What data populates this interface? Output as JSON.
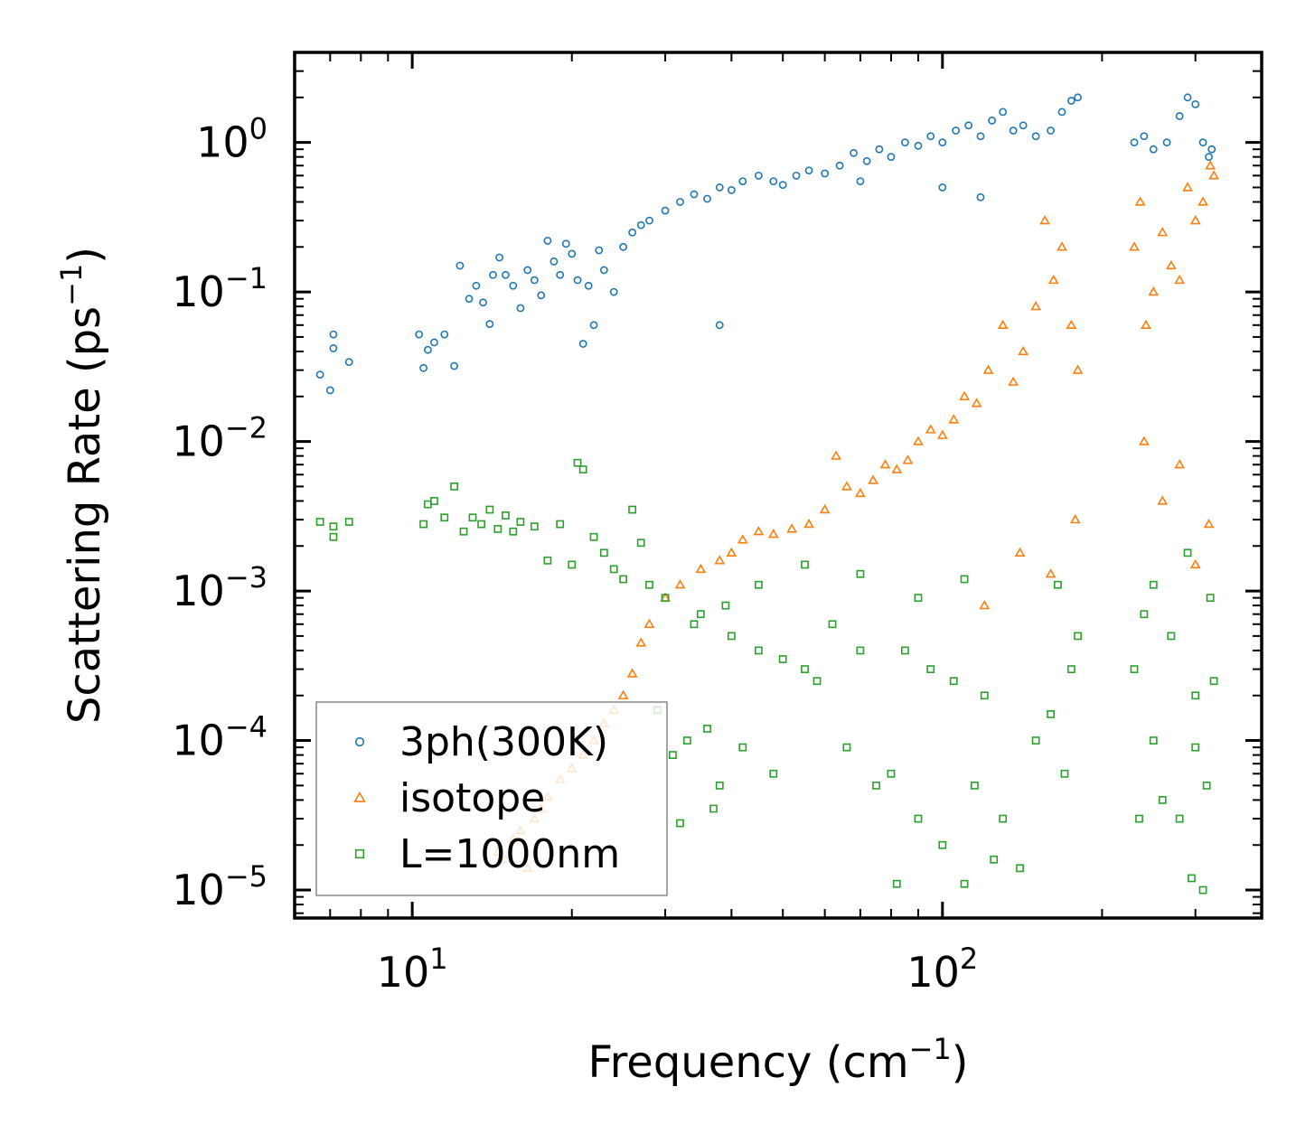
{
  "chart_data": {
    "type": "scatter",
    "title": "",
    "xlabel": "Frequency (cm",
    "xlabel_sup": "−1",
    "xlabel_close": ")",
    "ylabel": "Scattering Rate (ps",
    "ylabel_sup": "−1",
    "ylabel_close": ")",
    "xscale": "log",
    "yscale": "log",
    "xlim": [
      6.0,
      400.0
    ],
    "ylim": [
      6.5e-06,
      4.0
    ],
    "x_ticks": [
      {
        "value": 10,
        "base": "10",
        "exp": "1"
      },
      {
        "value": 100,
        "base": "10",
        "exp": "2"
      }
    ],
    "y_ticks": [
      {
        "value": 1,
        "base": "10",
        "exp": "0"
      },
      {
        "value": 0.1,
        "base": "10",
        "exp": "−1"
      },
      {
        "value": 0.01,
        "base": "10",
        "exp": "−2"
      },
      {
        "value": 0.001,
        "base": "10",
        "exp": "−3"
      },
      {
        "value": 0.0001,
        "base": "10",
        "exp": "−4"
      },
      {
        "value": 1e-05,
        "base": "10",
        "exp": "−5"
      }
    ],
    "legend_position": "lower-left",
    "series": [
      {
        "name": "3ph(300K)",
        "marker": "circle",
        "color": "#1f77b4",
        "points": [
          [
            6.7,
            0.028
          ],
          [
            7.0,
            0.022
          ],
          [
            7.1,
            0.052
          ],
          [
            7.1,
            0.042
          ],
          [
            7.6,
            0.034
          ],
          [
            10.3,
            0.052
          ],
          [
            10.5,
            0.031
          ],
          [
            10.7,
            0.041
          ],
          [
            11.0,
            0.046
          ],
          [
            11.5,
            0.052
          ],
          [
            12.0,
            0.032
          ],
          [
            12.3,
            0.15
          ],
          [
            12.8,
            0.09
          ],
          [
            13.2,
            0.11
          ],
          [
            13.6,
            0.085
          ],
          [
            14.0,
            0.061
          ],
          [
            14.2,
            0.13
          ],
          [
            14.6,
            0.17
          ],
          [
            15.0,
            0.13
          ],
          [
            15.5,
            0.11
          ],
          [
            16.0,
            0.078
          ],
          [
            16.5,
            0.14
          ],
          [
            17.0,
            0.12
          ],
          [
            17.5,
            0.095
          ],
          [
            18.0,
            0.22
          ],
          [
            18.5,
            0.16
          ],
          [
            19.0,
            0.13
          ],
          [
            19.5,
            0.21
          ],
          [
            20.0,
            0.18
          ],
          [
            20.5,
            0.12
          ],
          [
            21.0,
            0.045
          ],
          [
            21.5,
            0.11
          ],
          [
            22.0,
            0.06
          ],
          [
            22.5,
            0.19
          ],
          [
            23.0,
            0.14
          ],
          [
            24.0,
            0.1
          ],
          [
            38.0,
            0.06
          ],
          [
            25.0,
            0.2
          ],
          [
            26.0,
            0.25
          ],
          [
            27.0,
            0.28
          ],
          [
            28.0,
            0.3
          ],
          [
            30.0,
            0.35
          ],
          [
            32.0,
            0.4
          ],
          [
            34.0,
            0.45
          ],
          [
            36.0,
            0.42
          ],
          [
            38.0,
            0.5
          ],
          [
            40.0,
            0.48
          ],
          [
            42.0,
            0.55
          ],
          [
            45.0,
            0.6
          ],
          [
            48.0,
            0.55
          ],
          [
            50.0,
            0.52
          ],
          [
            53.0,
            0.6
          ],
          [
            56.0,
            0.65
          ],
          [
            60.0,
            0.62
          ],
          [
            64.0,
            0.7
          ],
          [
            68.0,
            0.85
          ],
          [
            72.0,
            0.75
          ],
          [
            76.0,
            0.9
          ],
          [
            80.0,
            0.8
          ],
          [
            85.0,
            1.0
          ],
          [
            90.0,
            0.95
          ],
          [
            95.0,
            1.1
          ],
          [
            100.0,
            1.0
          ],
          [
            106.0,
            1.2
          ],
          [
            112.0,
            1.3
          ],
          [
            118.0,
            1.1
          ],
          [
            124.0,
            1.4
          ],
          [
            130.0,
            1.6
          ],
          [
            136.0,
            1.2
          ],
          [
            142.0,
            1.3
          ],
          [
            150.0,
            1.1
          ],
          [
            160.0,
            1.2
          ],
          [
            168.0,
            1.6
          ],
          [
            175.0,
            1.9
          ],
          [
            180.0,
            2.0
          ],
          [
            118.0,
            0.43
          ],
          [
            100.0,
            0.5
          ],
          [
            70.0,
            0.55
          ],
          [
            230.0,
            1.0
          ],
          [
            240.0,
            1.1
          ],
          [
            250.0,
            0.9
          ],
          [
            265.0,
            1.0
          ],
          [
            280.0,
            1.5
          ],
          [
            290.0,
            2.0
          ],
          [
            300.0,
            1.8
          ],
          [
            310.0,
            1.0
          ],
          [
            318.0,
            0.8
          ],
          [
            322.0,
            0.9
          ]
        ]
      },
      {
        "name": "isotope",
        "marker": "triangle",
        "color": "#ff7f0e",
        "points": [
          [
            14.5,
            1.8e-05
          ],
          [
            15.0,
            1.6e-05
          ],
          [
            15.5,
            2.2e-05
          ],
          [
            16.0,
            2.5e-05
          ],
          [
            16.5,
            1.4e-05
          ],
          [
            17.0,
            3e-05
          ],
          [
            17.5,
            3.5e-05
          ],
          [
            18.0,
            4.2e-05
          ],
          [
            19.0,
            5.5e-05
          ],
          [
            20.0,
            6.5e-05
          ],
          [
            21.0,
            8e-05
          ],
          [
            22.0,
            0.0001
          ],
          [
            23.0,
            0.00013
          ],
          [
            24.0,
            0.00016
          ],
          [
            25.0,
            0.0002
          ],
          [
            26.0,
            0.00028
          ],
          [
            27.0,
            0.00045
          ],
          [
            28.0,
            0.0006
          ],
          [
            30.0,
            0.0009
          ],
          [
            32.0,
            0.0011
          ],
          [
            35.0,
            0.0014
          ],
          [
            38.0,
            0.0016
          ],
          [
            40.0,
            0.0018
          ],
          [
            42.0,
            0.0022
          ],
          [
            45.0,
            0.0025
          ],
          [
            48.0,
            0.0024
          ],
          [
            52.0,
            0.0026
          ],
          [
            56.0,
            0.0028
          ],
          [
            60.0,
            0.0035
          ],
          [
            63.0,
            0.008
          ],
          [
            66.0,
            0.005
          ],
          [
            70.0,
            0.0045
          ],
          [
            74.0,
            0.0055
          ],
          [
            78.0,
            0.007
          ],
          [
            82.0,
            0.0065
          ],
          [
            86.0,
            0.0075
          ],
          [
            90.0,
            0.01
          ],
          [
            95.0,
            0.012
          ],
          [
            100.0,
            0.011
          ],
          [
            105.0,
            0.014
          ],
          [
            110.0,
            0.02
          ],
          [
            116.0,
            0.018
          ],
          [
            122.0,
            0.03
          ],
          [
            130.0,
            0.06
          ],
          [
            136.0,
            0.025
          ],
          [
            142.0,
            0.04
          ],
          [
            150.0,
            0.08
          ],
          [
            156.0,
            0.3
          ],
          [
            162.0,
            0.12
          ],
          [
            168.0,
            0.2
          ],
          [
            175.0,
            0.06
          ],
          [
            180.0,
            0.03
          ],
          [
            178.0,
            0.003
          ],
          [
            160.0,
            0.0013
          ],
          [
            140.0,
            0.0018
          ],
          [
            120.0,
            0.0008
          ],
          [
            230.0,
            0.2
          ],
          [
            236.0,
            0.4
          ],
          [
            242.0,
            0.06
          ],
          [
            250.0,
            0.1
          ],
          [
            260.0,
            0.25
          ],
          [
            270.0,
            0.15
          ],
          [
            280.0,
            0.12
          ],
          [
            290.0,
            0.5
          ],
          [
            300.0,
            0.3
          ],
          [
            310.0,
            0.4
          ],
          [
            320.0,
            0.7
          ],
          [
            325.0,
            0.6
          ],
          [
            240.0,
            0.01
          ],
          [
            260.0,
            0.004
          ],
          [
            280.0,
            0.007
          ],
          [
            300.0,
            0.0015
          ],
          [
            318.0,
            0.0028
          ]
        ]
      },
      {
        "name": "L=1000nm",
        "marker": "square",
        "color": "#2ca02c",
        "points": [
          [
            6.7,
            0.0029
          ],
          [
            7.1,
            0.0027
          ],
          [
            7.1,
            0.0023
          ],
          [
            7.6,
            0.0029
          ],
          [
            10.5,
            0.0028
          ],
          [
            10.7,
            0.0038
          ],
          [
            11.0,
            0.004
          ],
          [
            11.5,
            0.0031
          ],
          [
            12.0,
            0.005
          ],
          [
            12.5,
            0.0025
          ],
          [
            13.0,
            0.0031
          ],
          [
            13.5,
            0.0028
          ],
          [
            14.0,
            0.0035
          ],
          [
            14.5,
            0.0026
          ],
          [
            15.0,
            0.0032
          ],
          [
            15.5,
            0.0025
          ],
          [
            16.0,
            0.0029
          ],
          [
            17.0,
            0.0027
          ],
          [
            18.0,
            0.0016
          ],
          [
            19.0,
            0.0028
          ],
          [
            20.0,
            0.0015
          ],
          [
            20.5,
            0.0072
          ],
          [
            21.0,
            0.0065
          ],
          [
            22.0,
            0.0023
          ],
          [
            23.0,
            0.0018
          ],
          [
            24.0,
            0.0014
          ],
          [
            25.0,
            0.0012
          ],
          [
            26.0,
            0.0035
          ],
          [
            27.0,
            0.0021
          ],
          [
            28.0,
            0.0011
          ],
          [
            29.0,
            0.00016
          ],
          [
            30.0,
            0.0009
          ],
          [
            31.0,
            8e-05
          ],
          [
            32.0,
            2.8e-05
          ],
          [
            33.0,
            0.0001
          ],
          [
            34.0,
            0.0006
          ],
          [
            35.0,
            0.0007
          ],
          [
            36.0,
            0.00012
          ],
          [
            37.0,
            3.5e-05
          ],
          [
            38.0,
            5e-05
          ],
          [
            39.0,
            0.0008
          ],
          [
            40.0,
            0.0005
          ],
          [
            42.0,
            9e-05
          ],
          [
            45.0,
            0.0004
          ],
          [
            48.0,
            6e-05
          ],
          [
            50.0,
            0.00035
          ],
          [
            55.0,
            0.0003
          ],
          [
            58.0,
            0.00025
          ],
          [
            62.0,
            0.0006
          ],
          [
            66.0,
            9e-05
          ],
          [
            70.0,
            0.0004
          ],
          [
            75.0,
            5e-05
          ],
          [
            80.0,
            6e-05
          ],
          [
            82.0,
            1.1e-05
          ],
          [
            85.0,
            0.0004
          ],
          [
            90.0,
            3e-05
          ],
          [
            95.0,
            0.0003
          ],
          [
            100.0,
            2e-05
          ],
          [
            105.0,
            0.00025
          ],
          [
            110.0,
            1.1e-05
          ],
          [
            115.0,
            5e-05
          ],
          [
            120.0,
            0.0002
          ],
          [
            125.0,
            1.6e-05
          ],
          [
            130.0,
            3e-05
          ],
          [
            140.0,
            1.4e-05
          ],
          [
            150.0,
            0.0001
          ],
          [
            160.0,
            0.00015
          ],
          [
            165.0,
            0.0011
          ],
          [
            170.0,
            6e-05
          ],
          [
            175.0,
            0.0003
          ],
          [
            180.0,
            0.0005
          ],
          [
            110.0,
            0.0012
          ],
          [
            90.0,
            0.0009
          ],
          [
            70.0,
            0.0013
          ],
          [
            55.0,
            0.0015
          ],
          [
            45.0,
            0.0011
          ],
          [
            230.0,
            0.0003
          ],
          [
            235.0,
            3e-05
          ],
          [
            240.0,
            0.0007
          ],
          [
            250.0,
            0.0001
          ],
          [
            260.0,
            4e-05
          ],
          [
            270.0,
            0.0005
          ],
          [
            280.0,
            3e-05
          ],
          [
            290.0,
            0.0018
          ],
          [
            295.0,
            1.2e-05
          ],
          [
            300.0,
            0.0002
          ],
          [
            310.0,
            1e-05
          ],
          [
            315.0,
            5e-05
          ],
          [
            320.0,
            0.0009
          ],
          [
            325.0,
            0.00025
          ],
          [
            300.0,
            9e-05
          ],
          [
            250.0,
            0.0011
          ]
        ]
      }
    ]
  }
}
